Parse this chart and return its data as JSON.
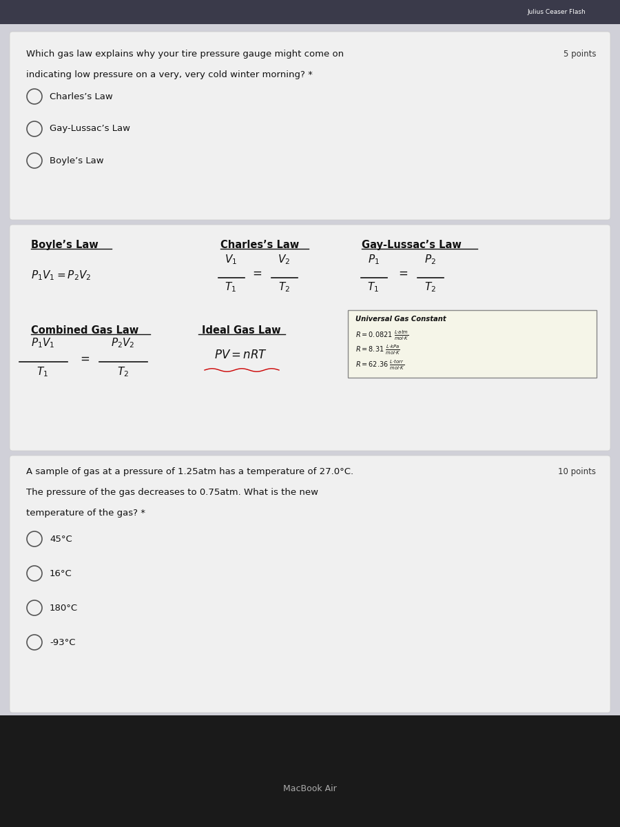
{
  "bg_top": "#d0d0d8",
  "bg_card1": "#f0f0f0",
  "bg_card2": "#f0f0f0",
  "bg_card3": "#f0f0f0",
  "bg_bottom": "#1a1a1a",
  "title_text": "Julius Ceaser Flash",
  "q1_text_line1": "Which gas law explains why your tire pressure gauge might come on",
  "q1_text_line2": "indicating low pressure on a very, very cold winter morning? *",
  "q1_points": "5 points",
  "q1_options": [
    "Charles’s Law",
    "Gay-Lussac’s Law",
    "Boyle’s Law"
  ],
  "boyles_law_title": "Boyle’s Law",
  "charles_law_title": "Charles’s Law",
  "gay_lussac_title": "Gay-Lussac’s Law",
  "combined_title": "Combined Gas Law",
  "ideal_title": "Ideal Gas Law",
  "ugc_title": "Universal Gas Constant",
  "q2_text_line1": "A sample of gas at a pressure of 1.25atm has a temperature of 27.0°C.",
  "q2_text_line2": "The pressure of the gas decreases to 0.75atm. What is the new",
  "q2_text_line3": "temperature of the gas? *",
  "q2_points": "10 points",
  "q2_options": [
    "45°C",
    "16°C",
    "180°C",
    "-93°C"
  ],
  "macbook_text": "MacBook Air"
}
